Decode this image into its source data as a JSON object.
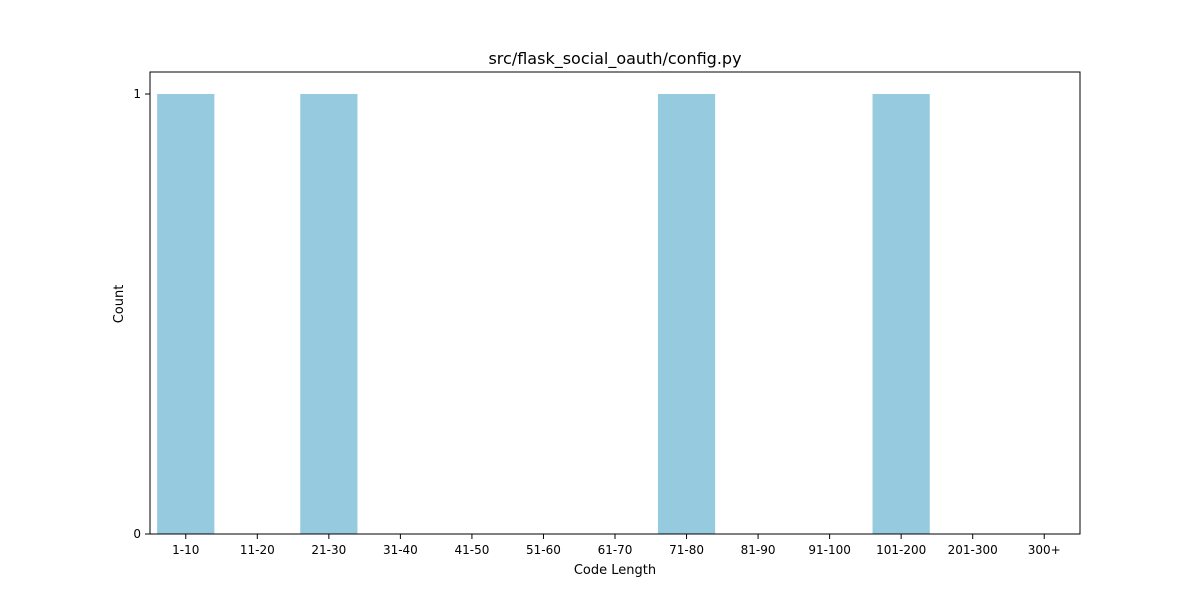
{
  "chart_data": {
    "type": "bar",
    "title": "src/flask_social_oauth/config.py",
    "xlabel": "Code Length",
    "ylabel": "Count",
    "categories": [
      "1-10",
      "11-20",
      "21-30",
      "31-40",
      "41-50",
      "51-60",
      "61-70",
      "71-80",
      "81-90",
      "91-100",
      "101-200",
      "201-300",
      "300+"
    ],
    "values": [
      1,
      0,
      1,
      0,
      0,
      0,
      0,
      1,
      0,
      0,
      1,
      0,
      0
    ],
    "ylim": [
      0,
      1.05
    ],
    "yticks": [
      0,
      1
    ],
    "ytick_labels": [
      "0",
      "1"
    ],
    "grid": false,
    "legend": "none",
    "colors": {
      "bar": "#96cadf",
      "axis": "#000000",
      "background": "#ffffff"
    }
  }
}
